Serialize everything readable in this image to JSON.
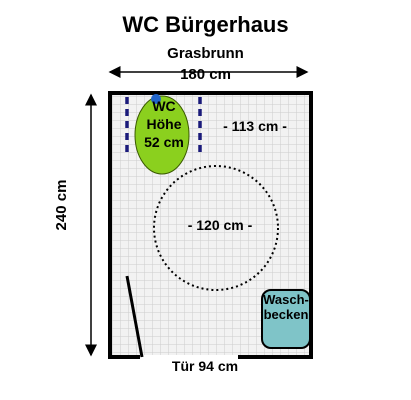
{
  "title": "WC Bürgerhaus",
  "subtitle": "Grasbrunn",
  "dimensions": {
    "width": "180 cm",
    "height": "240 cm",
    "clearance_right": "- 113 cm -",
    "turning_circle": "- 120 cm -",
    "door": "Tür 94 cm"
  },
  "wc": {
    "label_line1": "WC",
    "label_line2": "Höhe",
    "label_line3": "52 cm"
  },
  "sink": {
    "label_line1": "Wasch-",
    "label_line2": "becken"
  },
  "colors": {
    "wc_fill": "#8bd01e",
    "wc_button": "#2266cc",
    "sink_fill": "#7fc4c8",
    "grid_line": "#cccccc",
    "grab_bar": "#1a1a7a"
  }
}
